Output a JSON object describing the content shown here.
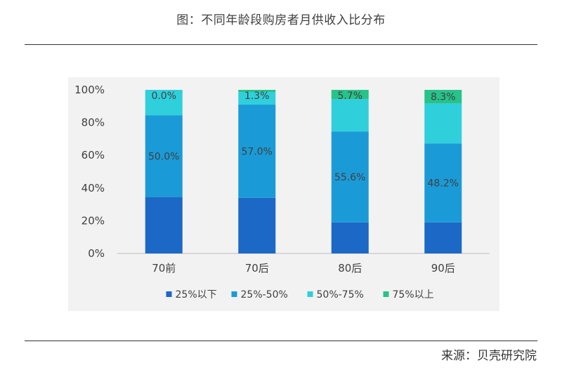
{
  "header": {
    "title": "图：不同年龄段购房者月供收入比分布"
  },
  "footer": {
    "source": "来源：贝壳研究院"
  },
  "chart_data": {
    "type": "bar",
    "stacked": true,
    "categories": [
      "70前",
      "70后",
      "80后",
      "90后"
    ],
    "series": [
      {
        "name": "25%以下",
        "color": "#1b68c6",
        "values": [
          34.5,
          34.0,
          19.0,
          19.0
        ]
      },
      {
        "name": "25%-50%",
        "color": "#1a9bd7",
        "values": [
          50.0,
          57.0,
          55.6,
          48.2
        ]
      },
      {
        "name": "50%-75%",
        "color": "#2fcfdc",
        "values": [
          15.5,
          7.7,
          19.7,
          24.5
        ]
      },
      {
        "name": "75%以上",
        "color": "#26c38b",
        "values": [
          0.0,
          1.3,
          5.7,
          8.3
        ]
      }
    ],
    "data_labels": [
      {
        "category": "70前",
        "series": "25%-50%",
        "text": "50.0%"
      },
      {
        "category": "70前",
        "series": "75%以上",
        "text": "0.0%"
      },
      {
        "category": "70后",
        "series": "25%-50%",
        "text": "57.0%"
      },
      {
        "category": "70后",
        "series": "75%以上",
        "text": "1.3%"
      },
      {
        "category": "80后",
        "series": "25%-50%",
        "text": "55.6%"
      },
      {
        "category": "80后",
        "series": "75%以上",
        "text": "5.7%"
      },
      {
        "category": "90后",
        "series": "25%-50%",
        "text": "48.2%"
      },
      {
        "category": "90后",
        "series": "75%以上",
        "text": "8.3%"
      }
    ],
    "y_ticks": [
      "0%",
      "20%",
      "40%",
      "60%",
      "80%",
      "100%"
    ],
    "ylim": [
      0,
      100
    ],
    "grid": false,
    "legend_position": "bottom"
  }
}
